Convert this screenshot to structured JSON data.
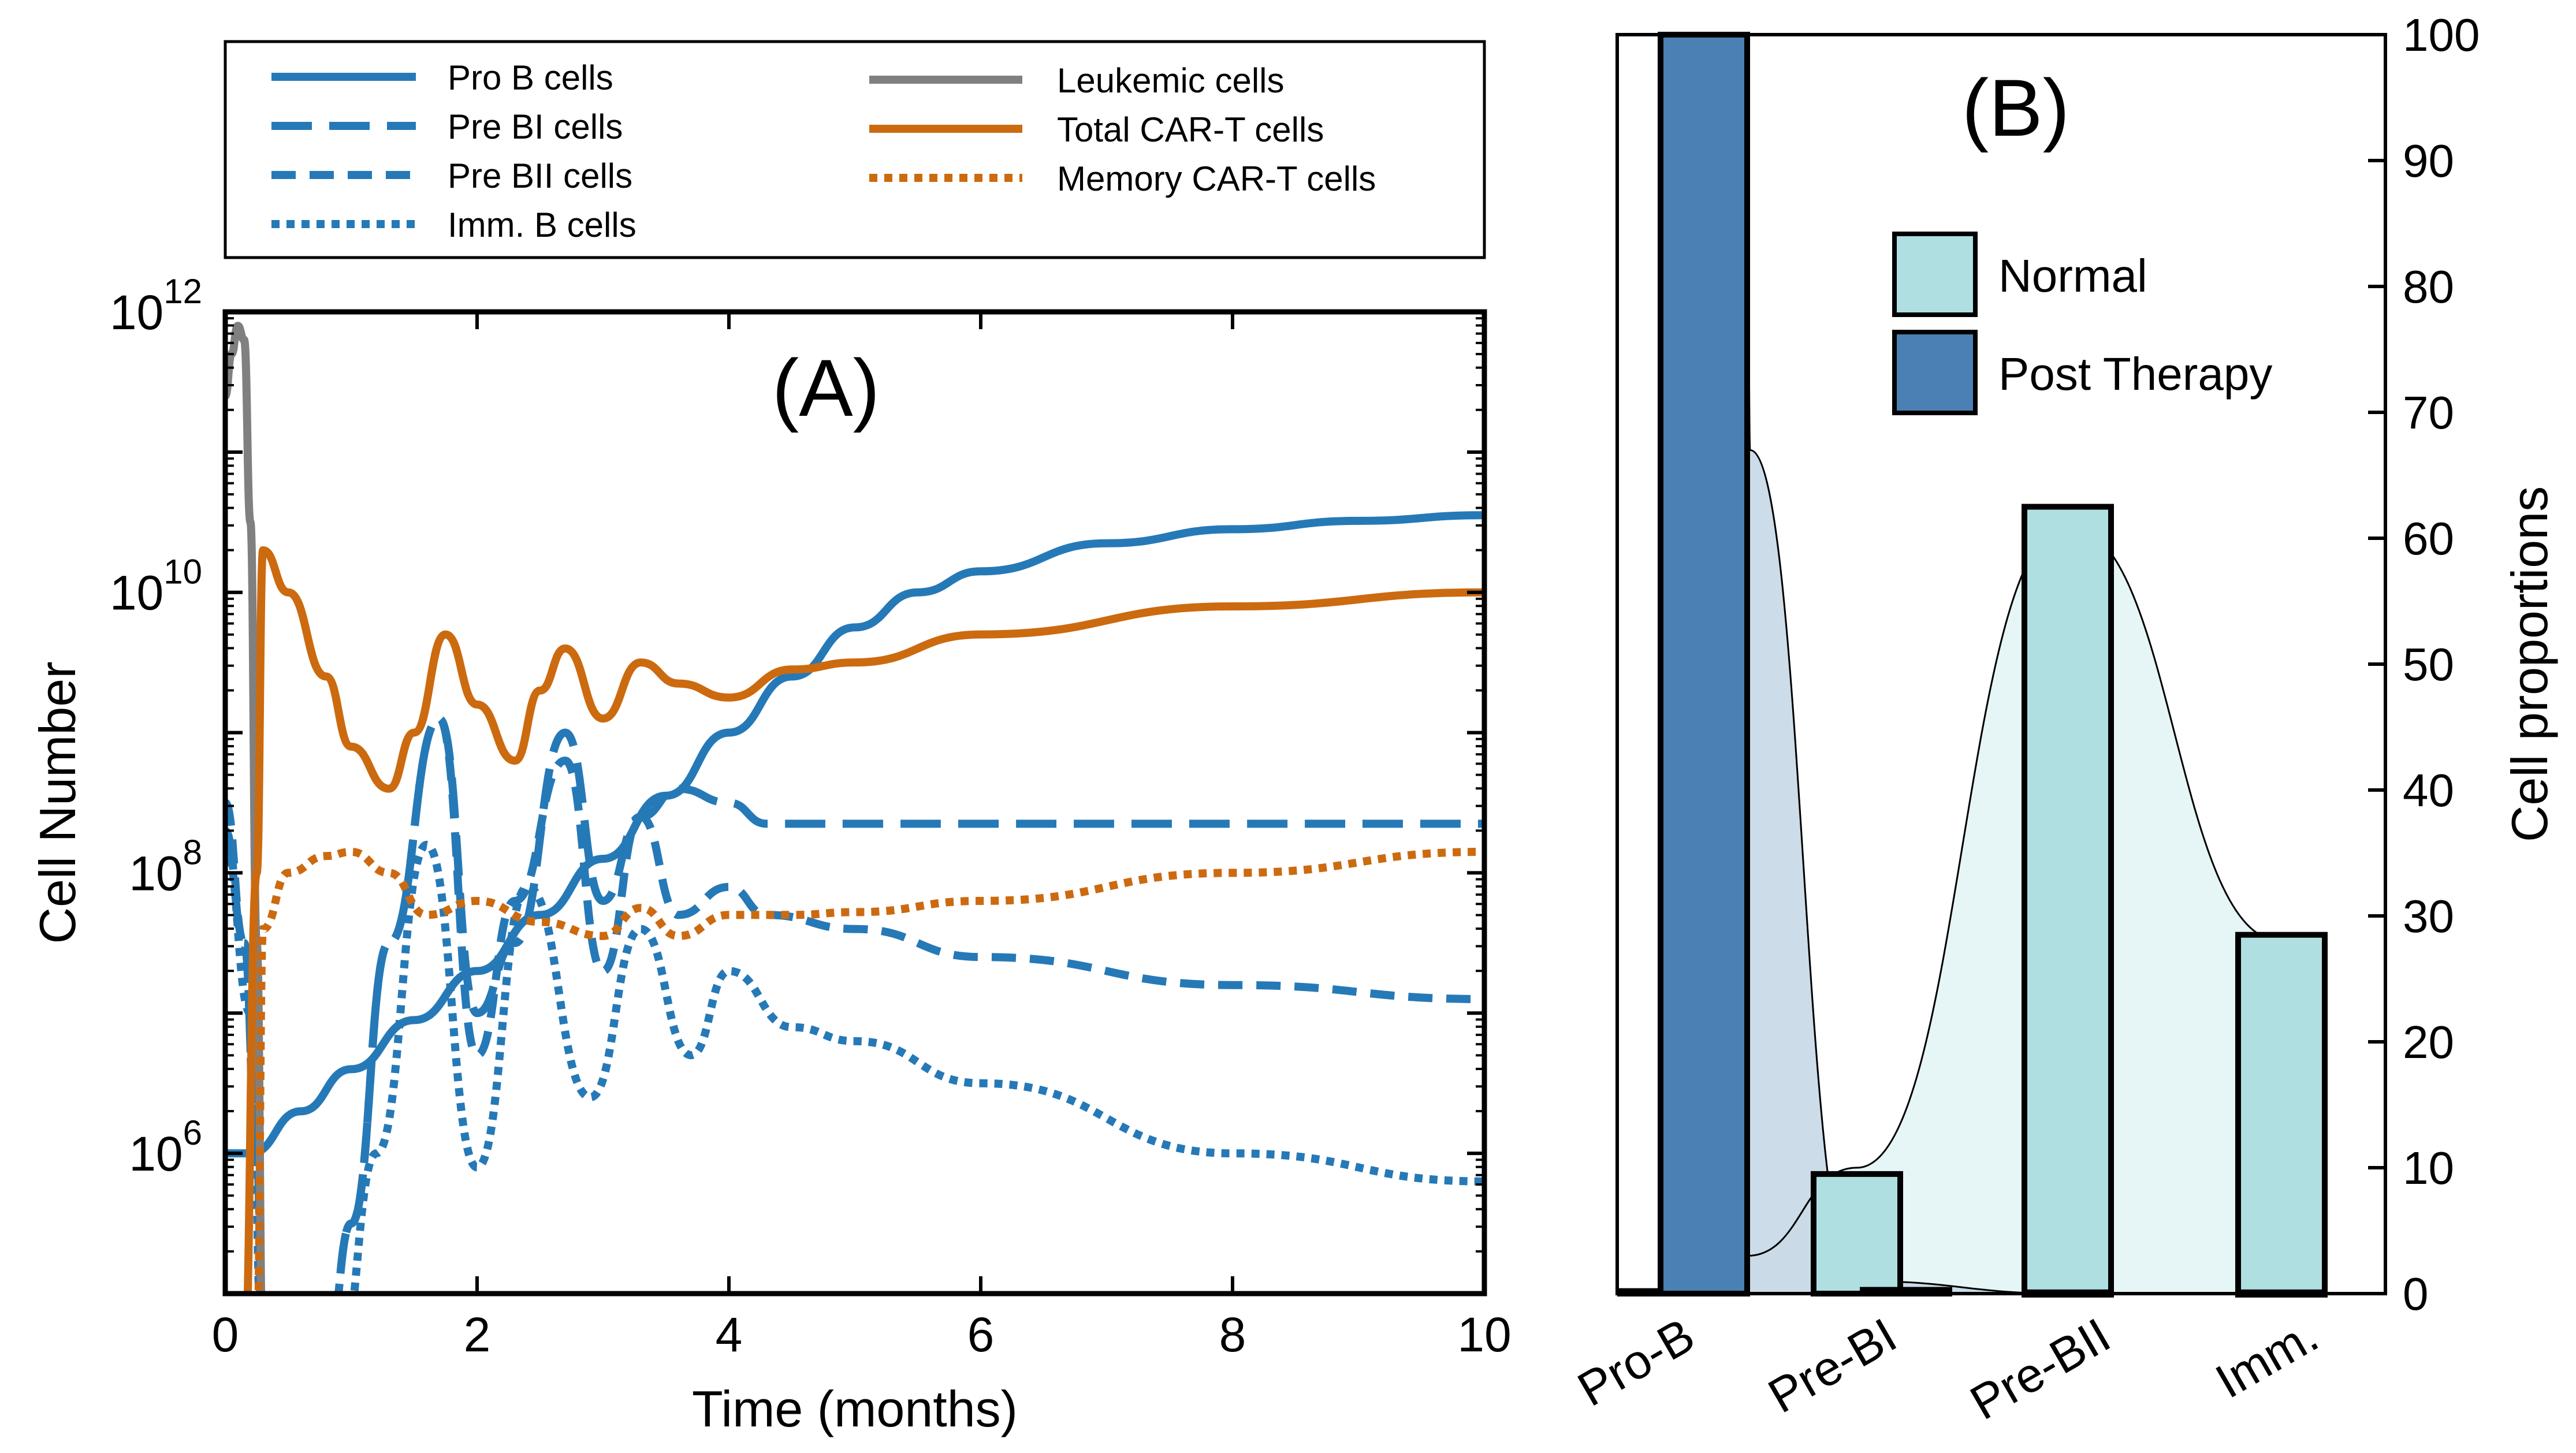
{
  "colors": {
    "blue": "#2679B7",
    "orange": "#CC6A10",
    "gray": "#808080",
    "normal_fill": "#B0DFE2",
    "post_fill": "#4A80B4",
    "normal_area": "#E6F5F6",
    "post_area": "#C6D8E6",
    "axis": "#000000"
  },
  "chart_data": [
    {
      "id": "A",
      "type": "line",
      "panel_label": "(A)",
      "xlabel": "Time (months)",
      "ylabel": "Cell Number",
      "xlim": [
        0,
        10
      ],
      "ylim_log10": [
        5,
        12
      ],
      "yscale": "log",
      "x_ticks": [
        "0",
        "2",
        "4",
        "6",
        "8",
        "10"
      ],
      "y_ticks": [
        {
          "base": "10",
          "exp": "6",
          "value": 6
        },
        {
          "base": "10",
          "exp": "8",
          "value": 8
        },
        {
          "base": "10",
          "exp": "10",
          "value": 10
        },
        {
          "base": "10",
          "exp": "12",
          "value": 12
        }
      ],
      "legend_title_left": [
        "Pro B cells",
        "Pre BI cells",
        "Pre BII cells",
        "Imm. B cells"
      ],
      "legend_title_right": [
        "Leukemic cells",
        "Total CAR-T cells",
        "Memory CAR-T cells"
      ],
      "series": [
        {
          "name": "Pro B cells",
          "color_key": "blue",
          "style": "solid",
          "x": [
            0,
            0.2,
            0.6,
            1.0,
            1.5,
            2.0,
            2.5,
            3.0,
            3.5,
            4.0,
            4.5,
            5.0,
            5.5,
            6.0,
            7.0,
            8.0,
            9.0,
            10.0
          ],
          "y": [
            6.0,
            6.0,
            6.3,
            6.6,
            6.95,
            7.3,
            7.7,
            8.1,
            8.55,
            9.0,
            9.4,
            9.75,
            10.0,
            10.15,
            10.35,
            10.45,
            10.51,
            10.55
          ]
        },
        {
          "name": "Pre BI cells",
          "color_key": "blue",
          "style": "longdash",
          "x": [
            0,
            0.15,
            0.25,
            0.3,
            0.8,
            1.0,
            1.3,
            1.7,
            2.0,
            2.3,
            2.7,
            3.0,
            3.3,
            3.6,
            4.0,
            4.3,
            5.0,
            6.0,
            8.0,
            10.0
          ],
          "y": [
            8.3,
            7.5,
            6.0,
            4.5,
            4.5,
            5.5,
            7.5,
            9.1,
            7.0,
            7.5,
            9.0,
            7.8,
            8.4,
            8.6,
            8.5,
            8.35,
            8.35,
            8.35,
            8.35,
            8.35
          ]
        },
        {
          "name": "Pre BII cells",
          "color_key": "blue",
          "style": "dash",
          "x": [
            0,
            0.15,
            0.25,
            0.3,
            0.8,
            1.0,
            1.3,
            1.7,
            2.0,
            2.3,
            2.7,
            3.0,
            3.3,
            3.6,
            4.0,
            4.3,
            5.0,
            6.0,
            8.0,
            10.0
          ],
          "y": [
            8.5,
            7.5,
            6.0,
            4.5,
            4.5,
            5.5,
            7.5,
            9.1,
            6.7,
            7.8,
            8.8,
            7.3,
            8.4,
            7.7,
            7.9,
            7.7,
            7.6,
            7.4,
            7.2,
            7.1
          ]
        },
        {
          "name": "Imm. B cells",
          "color_key": "blue",
          "style": "dot",
          "x": [
            0,
            0.2,
            0.3,
            0.9,
            1.2,
            1.6,
            2.0,
            2.4,
            2.9,
            3.3,
            3.7,
            4.0,
            4.5,
            5.0,
            6.0,
            8.0,
            10.0
          ],
          "y": [
            8.2,
            7.0,
            4.5,
            4.5,
            6.0,
            8.2,
            5.9,
            7.9,
            6.4,
            7.6,
            6.7,
            7.3,
            6.9,
            6.8,
            6.5,
            6.0,
            5.8
          ]
        },
        {
          "name": "Leukemic cells",
          "color_key": "gray",
          "style": "solid",
          "x": [
            0,
            0.05,
            0.1,
            0.15,
            0.2,
            0.25,
            0.3
          ],
          "y": [
            11.4,
            11.7,
            11.9,
            11.8,
            10.5,
            7.5,
            4.5
          ]
        },
        {
          "name": "Total CAR-T cells",
          "color_key": "orange",
          "style": "solid",
          "x": [
            0,
            0.15,
            0.25,
            0.3,
            0.5,
            0.8,
            1.0,
            1.3,
            1.5,
            1.75,
            2.0,
            2.3,
            2.5,
            2.7,
            3.0,
            3.3,
            3.6,
            4.0,
            4.5,
            5.0,
            6.0,
            8.0,
            10.0
          ],
          "y": [
            4.5,
            4.5,
            8.0,
            10.3,
            10.0,
            9.4,
            8.9,
            8.6,
            9.0,
            9.7,
            9.2,
            8.8,
            9.3,
            9.6,
            9.1,
            9.5,
            9.35,
            9.25,
            9.45,
            9.5,
            9.7,
            9.9,
            10.0
          ]
        },
        {
          "name": "Memory CAR-T cells",
          "color_key": "orange",
          "style": "dot",
          "x": [
            0,
            0.25,
            0.3,
            0.5,
            0.8,
            1.0,
            1.3,
            1.6,
            2.0,
            2.5,
            3.0,
            3.3,
            3.6,
            4.0,
            4.5,
            5.0,
            6.0,
            8.0,
            10.0
          ],
          "y": [
            4.5,
            4.5,
            7.6,
            8.0,
            8.12,
            8.15,
            8.0,
            7.7,
            7.8,
            7.65,
            7.55,
            7.75,
            7.55,
            7.7,
            7.7,
            7.72,
            7.8,
            8.0,
            8.15
          ]
        }
      ]
    },
    {
      "id": "B",
      "type": "bar",
      "panel_label": "(B)",
      "ylabel": "Cell proportions",
      "categories": [
        "Pro-B",
        "Pre-BI",
        "Pre-BII",
        "Imm."
      ],
      "ylim": [
        0,
        100
      ],
      "y_ticks": [
        "0",
        "10",
        "20",
        "30",
        "40",
        "50",
        "60",
        "70",
        "80",
        "90",
        "100"
      ],
      "series": [
        {
          "name": "Normal",
          "color_key": "normal_fill",
          "values": [
            0.2,
            9.5,
            62.5,
            28.5
          ]
        },
        {
          "name": "Post Therapy",
          "color_key": "post_fill",
          "values": [
            100,
            0.3,
            0.1,
            0.1
          ]
        }
      ],
      "legend": [
        "Normal",
        "Post Therapy"
      ]
    }
  ]
}
